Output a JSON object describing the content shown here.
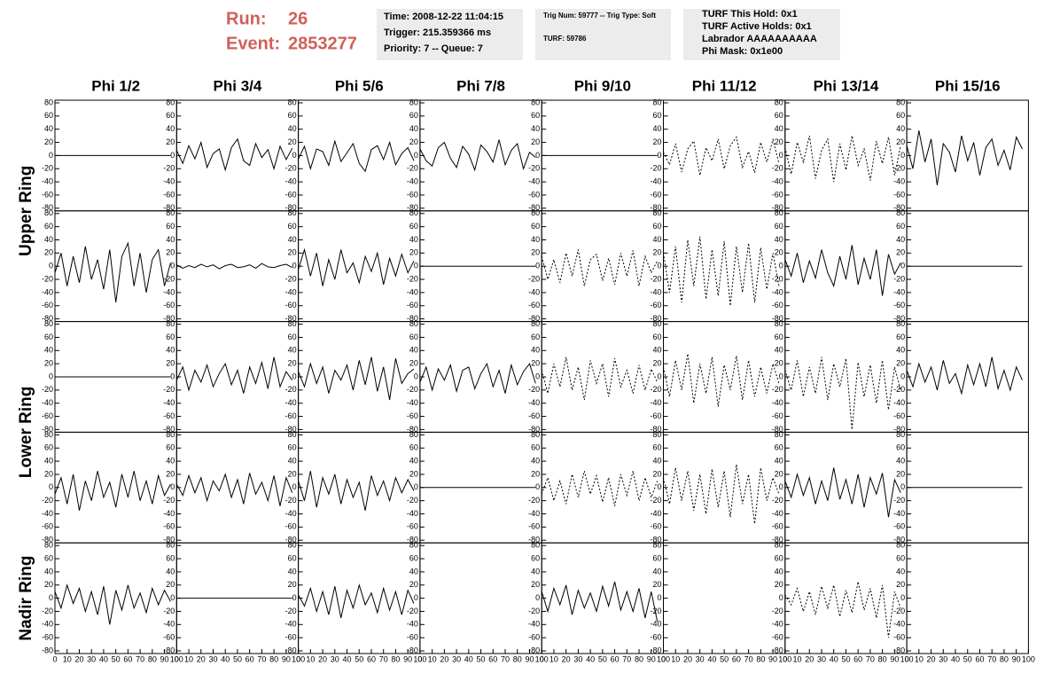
{
  "header": {
    "run_label": "Run:",
    "run": 26,
    "event_label": "Event:",
    "event": 2853277,
    "time_box": [
      "Time: 2008-12-22 11:04:15",
      "Trigger: 215.359366 ms",
      "Priority: 7 -- Queue: 7"
    ],
    "trig_box": [
      "Trig Num: 59777 -- Trig Type: Soft",
      "TURF: 59786"
    ],
    "turf_box": [
      "TURF This Hold: 0x1",
      "TURF Active Holds: 0x1",
      "Labrador AAAAAAAAAA",
      "Phi Mask: 0x1e00"
    ]
  },
  "chart_data": {
    "type": "line",
    "columns": [
      "Phi 1/2",
      "Phi 3/4",
      "Phi 5/6",
      "Phi 7/8",
      "Phi 9/10",
      "Phi 11/12",
      "Phi 13/14",
      "Phi 15/16"
    ],
    "row_labels": [
      "Upper Ring",
      "Lower Ring",
      "Nadir Ring"
    ],
    "x": [
      0,
      5,
      10,
      15,
      20,
      25,
      30,
      35,
      40,
      45,
      50,
      55,
      60,
      65,
      70,
      75,
      80,
      85,
      90,
      95
    ],
    "xlim": [
      0,
      100
    ],
    "ylim": [
      -80,
      80
    ],
    "xticks": [
      0,
      10,
      20,
      30,
      40,
      50,
      60,
      70,
      80,
      90,
      100
    ],
    "yticks": [
      -80,
      -60,
      -40,
      -20,
      0,
      20,
      40,
      60,
      80
    ],
    "color": "#000000",
    "panels": [
      [
        {
          "values": [
            0,
            0,
            0,
            0,
            0,
            0,
            0,
            0,
            0,
            0,
            0,
            0,
            0,
            0,
            0,
            0,
            0,
            0,
            0,
            0
          ],
          "style": "solid"
        },
        {
          "values": [
            8,
            -12,
            15,
            -5,
            20,
            -18,
            3,
            10,
            -22,
            12,
            25,
            -8,
            -15,
            18,
            -3,
            9,
            -20,
            14,
            -6,
            11
          ],
          "style": "solid"
        },
        {
          "values": [
            -5,
            14,
            -20,
            10,
            6,
            -15,
            22,
            -9,
            4,
            18,
            -12,
            -24,
            9,
            15,
            -6,
            20,
            -14,
            3,
            12,
            -8
          ],
          "style": "solid"
        },
        {
          "values": [
            10,
            -8,
            -16,
            12,
            20,
            -4,
            -18,
            14,
            2,
            -22,
            16,
            6,
            -10,
            24,
            -14,
            8,
            18,
            -20,
            5,
            -3
          ],
          "style": "solid"
        },
        {
          "values": [
            0,
            0,
            0,
            0,
            0,
            0,
            0,
            0,
            0,
            0,
            0,
            0,
            0,
            0,
            0,
            0,
            0,
            0,
            0,
            0
          ],
          "style": "solid"
        },
        {
          "values": [
            5,
            -14,
            18,
            -25,
            10,
            22,
            -30,
            12,
            -8,
            25,
            -20,
            15,
            28,
            -18,
            6,
            -26,
            20,
            -10,
            24,
            -12
          ],
          "style": "dashed"
        },
        {
          "values": [
            12,
            -28,
            20,
            -10,
            30,
            -35,
            8,
            25,
            -40,
            18,
            -22,
            30,
            -15,
            10,
            -38,
            22,
            -12,
            28,
            -30,
            15
          ],
          "style": "dashed"
        },
        {
          "values": [
            15,
            -20,
            38,
            -10,
            25,
            -45,
            18,
            5,
            -25,
            30,
            -8,
            20,
            -30,
            12,
            25,
            -15,
            8,
            -22,
            28,
            10
          ],
          "style": "solid"
        }
      ],
      [
        {
          "values": [
            -10,
            20,
            -30,
            15,
            -25,
            30,
            -20,
            10,
            -35,
            25,
            -55,
            15,
            35,
            -30,
            20,
            -40,
            10,
            25,
            -30,
            5
          ],
          "style": "solid"
        },
        {
          "values": [
            2,
            -3,
            1,
            -2,
            3,
            -1,
            2,
            -4,
            1,
            3,
            -2,
            -1,
            2,
            -3,
            4,
            -1,
            -2,
            1,
            3,
            -2
          ],
          "style": "solid"
        },
        {
          "values": [
            -5,
            25,
            -15,
            20,
            -30,
            10,
            -20,
            25,
            -10,
            5,
            -25,
            15,
            -8,
            20,
            -28,
            12,
            -15,
            18,
            -10,
            8
          ],
          "style": "solid"
        },
        {
          "values": [
            0,
            0,
            0,
            0,
            0,
            0,
            0,
            0,
            0,
            0,
            0,
            0,
            0,
            0,
            0,
            0,
            0,
            0,
            0,
            0
          ],
          "style": "solid"
        },
        {
          "values": [
            15,
            -20,
            10,
            -25,
            20,
            -15,
            25,
            -30,
            10,
            18,
            -22,
            12,
            -28,
            20,
            -15,
            24,
            -30,
            15,
            -10,
            8
          ],
          "style": "dashed"
        },
        {
          "values": [
            20,
            -40,
            30,
            -55,
            40,
            -30,
            45,
            -50,
            25,
            -45,
            38,
            -60,
            30,
            -40,
            35,
            -55,
            28,
            -35,
            20,
            -30
          ],
          "style": "dashed"
        },
        {
          "values": [
            10,
            -15,
            20,
            -25,
            8,
            -18,
            25,
            -10,
            -30,
            15,
            -20,
            32,
            -28,
            12,
            -20,
            25,
            -45,
            18,
            -12,
            5
          ],
          "style": "solid"
        },
        {
          "values": [
            0,
            0,
            0,
            0,
            0,
            0,
            0,
            0,
            0,
            0,
            0,
            0,
            0,
            0,
            0,
            0,
            0,
            0,
            0,
            0
          ],
          "style": "solid"
        }
      ],
      [
        {
          "values": [
            0,
            0,
            0,
            0,
            0,
            0,
            0,
            0,
            0,
            0,
            0,
            0,
            0,
            0,
            0,
            0,
            0,
            0,
            0,
            0
          ],
          "style": "solid"
        },
        {
          "values": [
            -5,
            15,
            -20,
            10,
            -8,
            18,
            -15,
            5,
            20,
            -12,
            10,
            -25,
            15,
            -10,
            22,
            -18,
            30,
            -15,
            8,
            -5
          ],
          "style": "solid"
        },
        {
          "values": [
            8,
            -15,
            20,
            -10,
            15,
            -25,
            10,
            -5,
            18,
            -20,
            25,
            -12,
            30,
            -22,
            15,
            -35,
            28,
            -10,
            5,
            12
          ],
          "style": "solid"
        },
        {
          "values": [
            -8,
            15,
            -20,
            12,
            -5,
            18,
            -22,
            10,
            15,
            -18,
            5,
            20,
            -15,
            10,
            -25,
            18,
            -12,
            8,
            20,
            -10
          ],
          "style": "solid"
        },
        {
          "values": [
            10,
            -25,
            20,
            -15,
            30,
            -20,
            15,
            -35,
            25,
            -10,
            20,
            -30,
            28,
            -15,
            10,
            -25,
            18,
            -20,
            12,
            -8
          ],
          "style": "dashed"
        },
        {
          "values": [
            15,
            -30,
            25,
            -20,
            35,
            -40,
            20,
            -25,
            30,
            -45,
            18,
            -20,
            32,
            -35,
            25,
            -30,
            15,
            -25,
            20,
            -10
          ],
          "style": "dashed"
        },
        {
          "values": [
            10,
            -20,
            25,
            -30,
            15,
            -25,
            30,
            -35,
            20,
            -15,
            28,
            -80,
            22,
            -30,
            18,
            -40,
            25,
            -50,
            15,
            -20
          ],
          "style": "dashed"
        },
        {
          "values": [
            10,
            -15,
            20,
            -8,
            15,
            -20,
            25,
            -10,
            5,
            -25,
            18,
            -12,
            20,
            -15,
            30,
            -18,
            10,
            -20,
            15,
            -5
          ],
          "style": "solid"
        }
      ],
      [
        {
          "values": [
            -10,
            15,
            -25,
            20,
            -35,
            10,
            -20,
            25,
            -15,
            8,
            -30,
            20,
            -15,
            25,
            -20,
            10,
            -25,
            18,
            -12,
            5
          ],
          "style": "solid"
        },
        {
          "values": [
            5,
            -12,
            18,
            -8,
            15,
            -20,
            10,
            -5,
            20,
            -15,
            12,
            -25,
            22,
            -10,
            8,
            -20,
            18,
            -28,
            15,
            -8
          ],
          "style": "solid"
        },
        {
          "values": [
            10,
            -20,
            25,
            -30,
            15,
            -10,
            20,
            -25,
            12,
            -15,
            8,
            -35,
            18,
            -12,
            10,
            -20,
            15,
            -8,
            12,
            -5
          ],
          "style": "solid"
        },
        {
          "values": [
            0,
            0,
            0,
            0,
            0,
            0,
            0,
            0,
            0,
            0,
            0,
            0,
            0,
            0,
            0,
            0,
            0,
            0,
            0,
            0
          ],
          "style": "solid"
        },
        {
          "values": [
            -10,
            15,
            -20,
            10,
            -25,
            20,
            -15,
            25,
            -10,
            18,
            -22,
            15,
            -28,
            20,
            -12,
            25,
            -20,
            15,
            -15,
            10
          ],
          "style": "dashed"
        },
        {
          "values": [
            15,
            -25,
            30,
            -20,
            25,
            -35,
            20,
            -40,
            28,
            -30,
            25,
            -45,
            35,
            -25,
            20,
            -55,
            30,
            -20,
            15,
            -10
          ],
          "style": "dashed"
        },
        {
          "values": [
            10,
            -15,
            20,
            -12,
            15,
            -25,
            10,
            -20,
            30,
            -18,
            12,
            -25,
            20,
            -30,
            15,
            -10,
            22,
            -45,
            12,
            -8
          ],
          "style": "solid"
        },
        {
          "values": [
            0,
            0,
            0,
            0,
            0,
            0,
            0,
            0,
            0,
            0,
            0,
            0,
            0,
            0,
            0,
            0,
            0,
            0,
            0,
            0
          ],
          "style": "solid"
        }
      ],
      [
        {
          "values": [
            10,
            -15,
            20,
            -8,
            15,
            -20,
            10,
            -25,
            18,
            -40,
            12,
            -18,
            20,
            -15,
            8,
            -22,
            15,
            -10,
            12,
            -5
          ],
          "style": "solid"
        },
        {
          "values": [
            0,
            0,
            0,
            0,
            0,
            0,
            0,
            0,
            0,
            0,
            0,
            0,
            0,
            0,
            0,
            0,
            0,
            0,
            0,
            0
          ],
          "style": "solid"
        },
        {
          "values": [
            5,
            -12,
            15,
            -20,
            10,
            -25,
            18,
            -30,
            12,
            -15,
            20,
            -10,
            8,
            -22,
            15,
            -18,
            10,
            -25,
            12,
            -8
          ],
          "style": "solid"
        },
        null,
        {
          "values": [
            10,
            -20,
            15,
            -10,
            20,
            -25,
            12,
            -15,
            8,
            -20,
            18,
            -12,
            25,
            -18,
            10,
            -20,
            15,
            -30,
            10,
            -35
          ],
          "style": "solid"
        },
        null,
        {
          "values": [
            5,
            -10,
            15,
            -20,
            10,
            -25,
            18,
            -15,
            20,
            -28,
            12,
            -22,
            25,
            -18,
            15,
            -30,
            20,
            -60,
            10,
            -15
          ],
          "style": "dashed"
        },
        null
      ]
    ]
  }
}
